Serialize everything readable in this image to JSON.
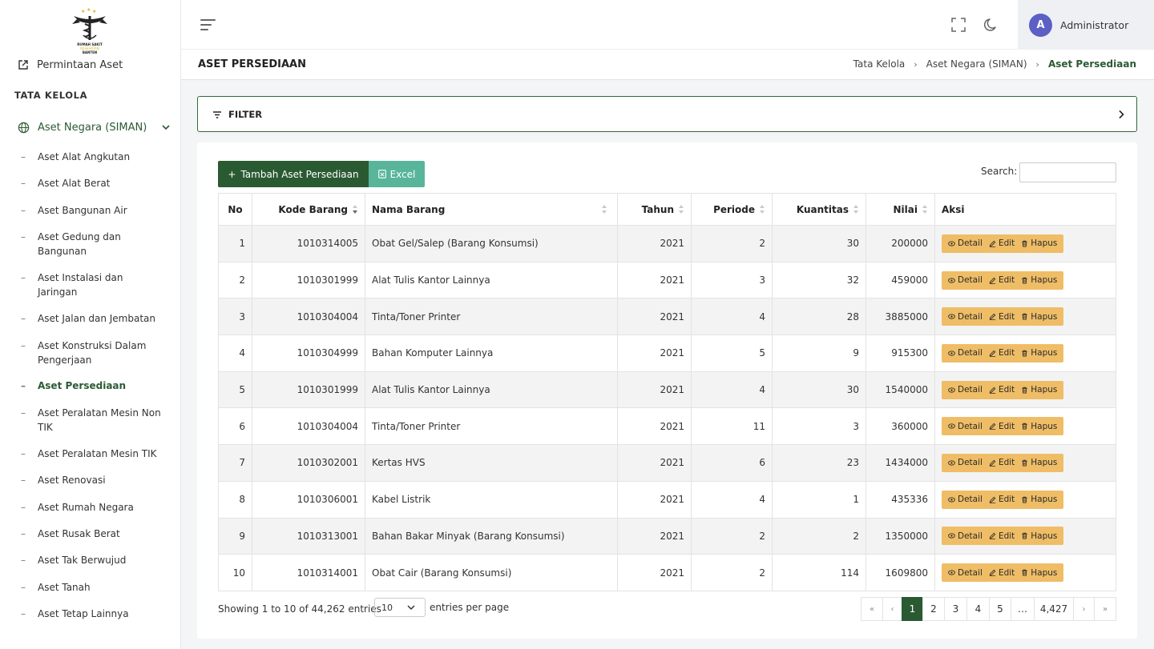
{
  "logo": {
    "text_lines": [
      "RUMAH SAKIT",
      "KESEHATAN",
      "BANTEN"
    ]
  },
  "sidebar": {
    "top_link": "Permintaan Aset",
    "section_title": "TATA KELOLA",
    "group_label": "Aset Negara (SIMAN)",
    "items": [
      "Aset Alat Angkutan",
      "Aset Alat Berat",
      "Aset Bangunan Air",
      "Aset Gedung dan Bangunan",
      "Aset Instalasi dan Jaringan",
      "Aset Jalan dan Jembatan",
      "Aset Konstruksi Dalam Pengerjaan",
      "Aset Persediaan",
      "Aset Peralatan Mesin Non TIK",
      "Aset Peralatan Mesin TIK",
      "Aset Renovasi",
      "Aset Rumah Negara",
      "Aset Rusak Berat",
      "Aset Tak Berwujud",
      "Aset Tanah",
      "Aset Tetap Lainnya"
    ],
    "active_item": "Aset Persediaan"
  },
  "topbar": {
    "avatar_initial": "A",
    "user_name": "Administrator"
  },
  "page": {
    "title": "ASET PERSEDIAAN",
    "breadcrumb": [
      "Tata Kelola",
      "Aset Negara (SIMAN)",
      "Aset Persediaan"
    ]
  },
  "filter": {
    "label": "FILTER"
  },
  "toolbar": {
    "add_label": "Tambah Aset Persediaan",
    "excel_label": "Excel",
    "search_label": "Search:",
    "search_value": ""
  },
  "table": {
    "columns": [
      "No",
      "Kode Barang",
      "Nama Barang",
      "Tahun",
      "Periode",
      "Kuantitas",
      "Nilai",
      "Aksi"
    ],
    "rows": [
      {
        "no": "1",
        "kode": "1010314005",
        "nama": "Obat Gel/Salep (Barang Konsumsi)",
        "tahun": "2021",
        "periode": "2",
        "kuantitas": "30",
        "nilai": "200000"
      },
      {
        "no": "2",
        "kode": "1010301999",
        "nama": "Alat Tulis Kantor Lainnya",
        "tahun": "2021",
        "periode": "3",
        "kuantitas": "32",
        "nilai": "459000"
      },
      {
        "no": "3",
        "kode": "1010304004",
        "nama": "Tinta/Toner Printer",
        "tahun": "2021",
        "periode": "4",
        "kuantitas": "28",
        "nilai": "3885000"
      },
      {
        "no": "4",
        "kode": "1010304999",
        "nama": "Bahan Komputer Lainnya",
        "tahun": "2021",
        "periode": "5",
        "kuantitas": "9",
        "nilai": "915300"
      },
      {
        "no": "5",
        "kode": "1010301999",
        "nama": "Alat Tulis Kantor Lainnya",
        "tahun": "2021",
        "periode": "4",
        "kuantitas": "30",
        "nilai": "1540000"
      },
      {
        "no": "6",
        "kode": "1010304004",
        "nama": "Tinta/Toner Printer",
        "tahun": "2021",
        "periode": "11",
        "kuantitas": "3",
        "nilai": "360000"
      },
      {
        "no": "7",
        "kode": "1010302001",
        "nama": "Kertas HVS",
        "tahun": "2021",
        "periode": "6",
        "kuantitas": "23",
        "nilai": "1434000"
      },
      {
        "no": "8",
        "kode": "1010306001",
        "nama": "Kabel Listrik",
        "tahun": "2021",
        "periode": "4",
        "kuantitas": "1",
        "nilai": "435336"
      },
      {
        "no": "9",
        "kode": "1010313001",
        "nama": "Bahan Bakar Minyak (Barang Konsumsi)",
        "tahun": "2021",
        "periode": "2",
        "kuantitas": "2",
        "nilai": "1350000"
      },
      {
        "no": "10",
        "kode": "1010314001",
        "nama": "Obat Cair (Barang Konsumsi)",
        "tahun": "2021",
        "periode": "2",
        "kuantitas": "114",
        "nilai": "1609800"
      }
    ],
    "actions": [
      "Detail",
      "Edit",
      "Hapus"
    ]
  },
  "footer": {
    "info": "Showing 1 to 10 of 44,262 entries",
    "page_length": "10",
    "page_length_label": "entries per page",
    "pages": [
      "«",
      "‹",
      "1",
      "2",
      "3",
      "4",
      "5",
      "…",
      "4,427",
      "›",
      "»"
    ],
    "active_page": "1"
  },
  "colors": {
    "primary": "#2a5a32",
    "excel": "#58b59a",
    "action": "#efbd66",
    "avatar": "#5c5fc4"
  }
}
